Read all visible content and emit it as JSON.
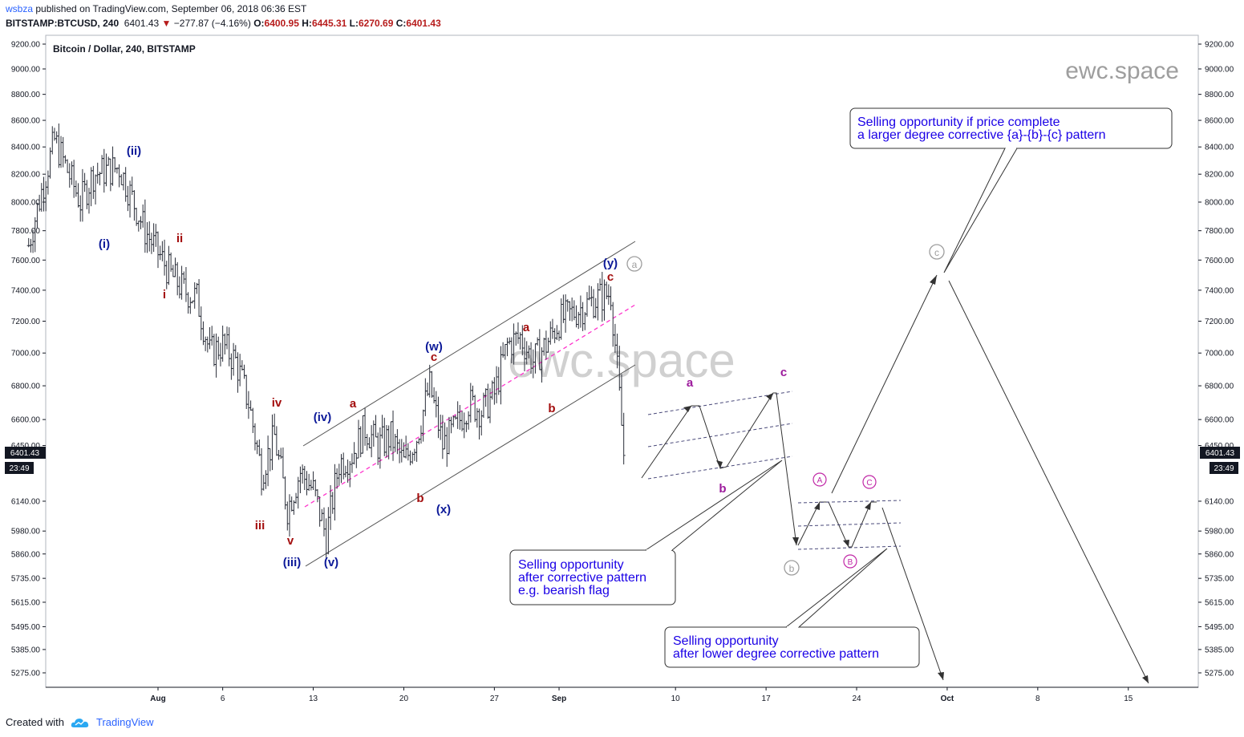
{
  "header": {
    "user": "wsbza",
    "published": "published on TradingView.com, September 06, 2018 06:36 EST",
    "symbol": "BITSTAMP:BTCUSD, 240",
    "last": "6401.43",
    "change": "−277.87 (−4.16%)",
    "o_label": "O:",
    "o": "6400.95",
    "h_label": "H:",
    "h": "6445.31",
    "l_label": "L:",
    "l": "6270.69",
    "c_label": "C:",
    "c": "6401.43"
  },
  "footer": {
    "created": "Created with",
    "brand": "TradingView"
  },
  "colors": {
    "wave_blue": "#0d1a99",
    "wave_red": "#a30d0d",
    "wave_purple": "#9c1a9c",
    "note_text": "#1a00e6",
    "candle": "#2a2e39",
    "channel": "#555555",
    "midline": "#ff33cc",
    "grey_circle": "#9e9e9e",
    "price_tag": "#131722"
  },
  "chart_data": {
    "type": "line",
    "title": "Bitcoin / Dollar, 240, BITSTAMP",
    "watermark_small": "ewc.space",
    "watermark_large": "ewc.space",
    "last_price": "6401.43",
    "countdown": "23:49",
    "y_ticks": [
      "9200.00",
      "9000.00",
      "8800.00",
      "8600.00",
      "8400.00",
      "8200.00",
      "8000.00",
      "7800.00",
      "7600.00",
      "7400.00",
      "7200.00",
      "7000.00",
      "6800.00",
      "6600.00",
      "6450.00",
      "6140.00",
      "5980.00",
      "5860.00",
      "5735.00",
      "5615.00",
      "5495.00",
      "5385.00",
      "5275.00"
    ],
    "x_ticks": [
      "Aug",
      "6",
      "13",
      "20",
      "27",
      "Sep",
      "10",
      "17",
      "24",
      "Oct",
      "8",
      "15"
    ],
    "y_scale": "log",
    "series": [
      {
        "values": [
          [
            "Jul 22",
            7700
          ],
          [
            "Jul 24",
            8450
          ],
          [
            "Jul 26",
            8000
          ],
          [
            "Jul 27",
            8200
          ],
          [
            "Jul 29",
            8250
          ],
          [
            "Jul 31",
            7800
          ],
          [
            "Aug 1",
            7650
          ],
          [
            "Aug 2",
            7500
          ],
          [
            "Aug 3",
            7400
          ],
          [
            "Aug 4",
            7350
          ],
          [
            "Aug 5",
            7000
          ],
          [
            "Aug 6",
            7050
          ],
          [
            "Aug 7",
            6950
          ],
          [
            "Aug 8",
            6700
          ],
          [
            "Aug 9",
            6300
          ],
          [
            "Aug 10",
            6500
          ],
          [
            "Aug 11",
            6100
          ],
          [
            "Aug 12",
            6300
          ],
          [
            "Aug 13",
            6200
          ],
          [
            "Aug 14",
            5950
          ],
          [
            "Aug 15",
            6350
          ],
          [
            "Aug 16",
            6400
          ],
          [
            "Aug 17",
            6550
          ],
          [
            "Aug 18",
            6450
          ],
          [
            "Aug 19",
            6500
          ],
          [
            "Aug 20",
            6350
          ],
          [
            "Aug 21",
            6500
          ],
          [
            "Aug 22",
            6800
          ],
          [
            "Aug 23",
            6450
          ],
          [
            "Aug 24",
            6550
          ],
          [
            "Aug 25",
            6700
          ],
          [
            "Aug 26",
            6650
          ],
          [
            "Aug 27",
            6750
          ],
          [
            "Aug 28",
            7050
          ],
          [
            "Aug 29",
            7100
          ],
          [
            "Aug 30",
            6950
          ],
          [
            "Aug 31",
            7050
          ],
          [
            "Sep 1",
            7200
          ],
          [
            "Sep 2",
            7250
          ],
          [
            "Sep 3",
            7300
          ],
          [
            "Sep 4",
            7350
          ],
          [
            "Sep 5",
            7380
          ],
          [
            "Sep 6",
            6401.43
          ]
        ]
      }
    ],
    "wave_labels_blue": [
      "(i)",
      "(ii)",
      "(iii)",
      "(iv)",
      "(v)",
      "(w)",
      "(x)",
      "(y)"
    ],
    "wave_labels_red": [
      "i",
      "ii",
      "iii",
      "iv",
      "v",
      "a",
      "b",
      "c",
      "a",
      "b",
      "c"
    ],
    "wave_labels_purple": [
      "a",
      "b",
      "c"
    ],
    "wave_labels_circled": [
      "a",
      "b",
      "c",
      "A",
      "B",
      "C"
    ],
    "annotations": [
      {
        "line1": "Selling opportunity if price complete",
        "line2": "a larger degree corrective {a}-{b}-{c} pattern"
      },
      {
        "line1": "Selling opportunity",
        "line2": "after corrective pattern",
        "line3": "e.g. bearish flag"
      },
      {
        "line1": "Selling opportunity",
        "line2": "after lower degree corrective pattern"
      }
    ]
  }
}
